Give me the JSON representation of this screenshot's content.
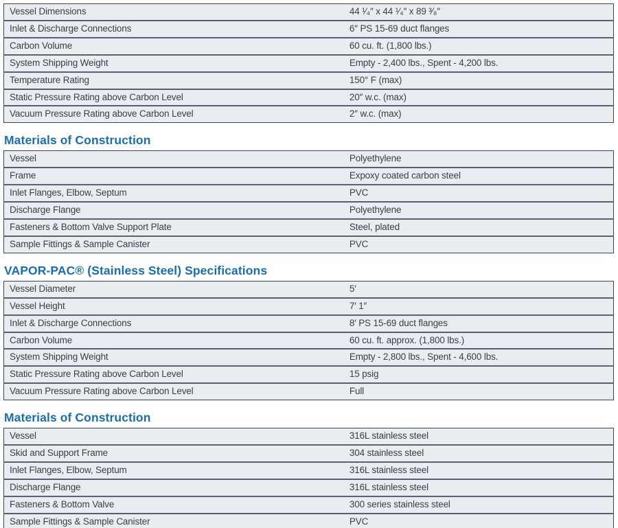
{
  "colors": {
    "heading_blue": "#1b6db0",
    "row_background": "#e9ecf1",
    "row_border": "#596067",
    "cell_text": "#3b4046"
  },
  "sections": [
    {
      "rows": [
        {
          "label": "Vessel Dimensions",
          "value": "44 ¹⁄₄″ x 44 ¹⁄₄″ x 89 ³⁄₈″"
        },
        {
          "label": "Inlet & Discharge Connections",
          "value": "6″ PS 15-69 duct flanges"
        },
        {
          "label": "Carbon Volume",
          "value": "60 cu. ft. (1,800 lbs.)"
        },
        {
          "label": "System Shipping Weight",
          "value": "Empty - 2,400 lbs., Spent - 4,200 lbs."
        },
        {
          "label": "Temperature Rating",
          "value": "150° F (max)"
        },
        {
          "label": "Static Pressure Rating above Carbon Level",
          "value": "20″ w.c. (max)"
        },
        {
          "label": "Vacuum Pressure Rating above Carbon Level",
          "value": "2″ w.c. (max)"
        }
      ]
    },
    {
      "heading": "Materials of Construction",
      "rows": [
        {
          "label": "Vessel",
          "value": "Polyethylene"
        },
        {
          "label": "Frame",
          "value": "Expoxy coated carbon steel"
        },
        {
          "label": "Inlet Flanges, Elbow, Septum",
          "value": "PVC"
        },
        {
          "label": "Discharge Flange",
          "value": "Polyethylene"
        },
        {
          "label": "Fasteners & Bottom Valve Support Plate",
          "value": "Steel, plated"
        },
        {
          "label": "Sample Fittings & Sample Canister",
          "value": "PVC"
        }
      ]
    },
    {
      "heading": "VAPOR-PAC® (Stainless Steel) Specifications",
      "rows": [
        {
          "label": "Vessel Diameter",
          "value": "5′"
        },
        {
          "label": "Vessel Height",
          "value": "7′ 1″"
        },
        {
          "label": "Inlet & Discharge Connections",
          "value": "8′ PS 15-69 duct flanges"
        },
        {
          "label": "Carbon Volume",
          "value": "60 cu. ft. approx. (1,800 lbs.)"
        },
        {
          "label": "System Shipping Weight",
          "value": "Empty - 2,800 lbs., Spent - 4,600 lbs."
        },
        {
          "label": "Static Pressure Rating above Carbon Level",
          "value": "15 psig"
        },
        {
          "label": "Vacuum Pressure Rating above Carbon Level",
          "value": "Full"
        }
      ]
    },
    {
      "heading": "Materials of Construction",
      "rows": [
        {
          "label": "Vessel",
          "value": "316L stainless steel"
        },
        {
          "label": "Skid and Support Frame",
          "value": "304 stainless steel"
        },
        {
          "label": "Inlet Flanges, Elbow, Septum",
          "value": "316L stainless steel"
        },
        {
          "label": "Discharge Flange",
          "value": "316L stainless steel"
        },
        {
          "label": "Fasteners & Bottom Valve",
          "value": "300 series stainless steel"
        },
        {
          "label": "Sample Fittings & Sample Canister",
          "value": "PVC"
        }
      ]
    }
  ]
}
